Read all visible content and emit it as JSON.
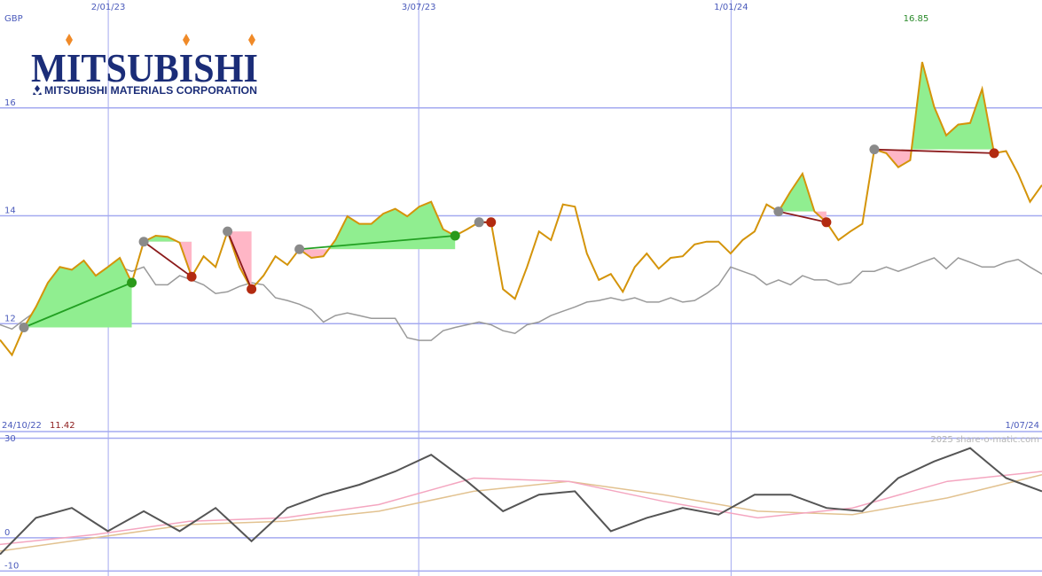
{
  "logo": {
    "name": "MITSUBISHI",
    "subtitle": "MITSUBISHI MATERIALS CORPORATION"
  },
  "chart_data": [
    {
      "type": "line",
      "unit_label": "GBP",
      "start_label": "24/10/22",
      "end_label": "1/07/24",
      "min_label_index": 1,
      "max_label_index": 77,
      "watermark": "2025 share-o-matic.com",
      "ylim": [
        10,
        18
      ],
      "yticks": [
        12,
        14,
        16
      ],
      "grid": true,
      "grid_color": "#a4aaf0",
      "xticks": [
        {
          "value": 9.04,
          "label": "2/01/23"
        },
        {
          "value": 34.96,
          "label": "3/07/23"
        },
        {
          "value": 61.04,
          "label": "1/01/24"
        }
      ],
      "fill_up": "#90ee90",
      "fill_down": "#ffb6c6",
      "line_up": "#22a022",
      "line_down": "#8b1a1a",
      "dot_start": "#8a8a8a",
      "dot_up": "#2a9a1a",
      "dot_down": "#b22a10",
      "series": [
        {
          "name": "Price",
          "color": "#d4940a",
          "values": [
            11.7,
            11.42,
            11.93,
            12.31,
            12.76,
            13.05,
            13.0,
            13.17,
            12.89,
            13.05,
            13.22,
            12.76,
            13.52,
            13.63,
            13.61,
            13.5,
            12.87,
            13.25,
            13.05,
            13.71,
            13.05,
            12.64,
            12.89,
            13.25,
            13.09,
            13.38,
            13.22,
            13.25,
            13.55,
            13.99,
            13.85,
            13.85,
            14.04,
            14.13,
            13.99,
            14.17,
            14.26,
            13.75,
            13.63,
            13.75,
            13.88,
            13.88,
            12.64,
            12.46,
            13.05,
            13.71,
            13.55,
            14.21,
            14.17,
            13.3,
            12.81,
            12.92,
            12.59,
            13.05,
            13.3,
            13.02,
            13.22,
            13.25,
            13.47,
            13.52,
            13.52,
            13.3,
            13.55,
            13.71,
            14.21,
            14.08,
            14.45,
            14.78,
            14.08,
            13.88,
            13.55,
            13.71,
            13.85,
            15.23,
            15.16,
            14.9,
            15.03,
            16.85,
            16.02,
            15.49,
            15.69,
            15.72,
            16.35,
            15.16,
            15.2,
            14.78,
            14.26,
            14.57
          ]
        },
        {
          "name": "Index",
          "color": "#9a9a9a",
          "values": [
            11.98,
            11.9,
            12.07,
            12.23,
            12.26,
            12.26,
            12.23,
            12.15,
            12.31,
            12.76,
            13.05,
            12.97,
            13.05,
            12.72,
            12.72,
            12.89,
            12.81,
            12.72,
            12.56,
            12.59,
            12.69,
            12.76,
            12.72,
            12.48,
            12.43,
            12.36,
            12.26,
            12.03,
            12.15,
            12.2,
            12.15,
            12.1,
            12.1,
            12.1,
            11.74,
            11.69,
            11.69,
            11.87,
            11.93,
            11.98,
            12.03,
            11.98,
            11.87,
            11.82,
            11.98,
            12.03,
            12.15,
            12.23,
            12.31,
            12.4,
            12.43,
            12.48,
            12.43,
            12.48,
            12.4,
            12.4,
            12.48,
            12.4,
            12.43,
            12.56,
            12.72,
            13.05,
            12.97,
            12.89,
            12.72,
            12.81,
            12.72,
            12.89,
            12.81,
            12.81,
            12.72,
            12.76,
            12.97,
            12.97,
            13.05,
            12.97,
            13.05,
            13.14,
            13.22,
            13.02,
            13.22,
            13.14,
            13.05,
            13.05,
            13.14,
            13.19,
            13.05,
            12.92
          ]
        }
      ],
      "signals": [
        {
          "start": 2,
          "end": 11
        },
        {
          "start": 12,
          "end": 16
        },
        {
          "start": 19,
          "end": 21
        },
        {
          "start": 25,
          "end": 38
        },
        {
          "start": 40,
          "end": 41
        },
        {
          "start": 65,
          "end": 69
        },
        {
          "start": 73,
          "end": 83
        }
      ]
    },
    {
      "type": "line",
      "ylim": [
        -11.5,
        32
      ],
      "yticks": [
        -10,
        0,
        30
      ],
      "grid": true,
      "grid_color": "#a4aaf0",
      "series": [
        {
          "name": "Oscillator",
          "color": "#555555",
          "values": [
            -5,
            6,
            9,
            2,
            8,
            2,
            9,
            -1,
            9,
            13,
            16,
            20,
            25,
            17,
            8,
            13,
            14,
            2,
            6,
            9,
            7,
            13,
            13,
            9,
            8,
            18,
            23,
            27,
            18,
            14
          ]
        },
        {
          "name": "Fast average",
          "color": "#f4a6c0",
          "values": [
            -2,
            1,
            5,
            6,
            10,
            18,
            17,
            11,
            6,
            9,
            17,
            20
          ]
        },
        {
          "name": "Slow average",
          "color": "#e2c290",
          "values": [
            -4,
            0,
            4,
            5,
            8,
            14,
            17,
            13,
            8,
            7,
            12,
            19
          ]
        }
      ]
    }
  ]
}
